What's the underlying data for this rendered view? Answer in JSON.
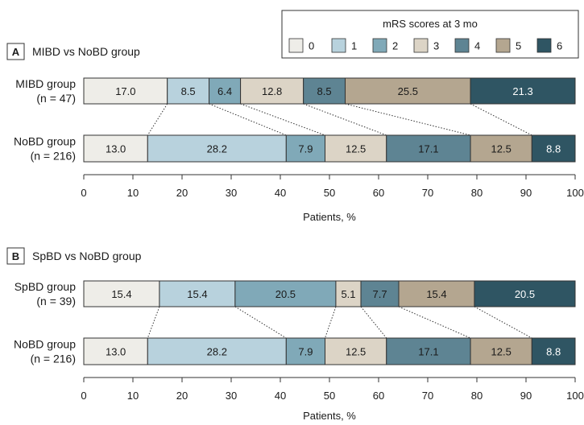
{
  "legend": {
    "title": "mRS scores at 3 mo",
    "items": [
      {
        "label": "0",
        "color": "#eeede8"
      },
      {
        "label": "1",
        "color": "#b8d2dd"
      },
      {
        "label": "2",
        "color": "#80a9b8"
      },
      {
        "label": "3",
        "color": "#dcd4c6"
      },
      {
        "label": "4",
        "color": "#5e8493"
      },
      {
        "label": "5",
        "color": "#b4a690"
      },
      {
        "label": "6",
        "color": "#2f5563"
      }
    ]
  },
  "chart_data": [
    {
      "type": "bar",
      "stacked": true,
      "orientation": "horizontal",
      "panel_letter": "A",
      "panel_title": "MIBD vs NoBD group",
      "xlabel": "Patients, %",
      "xlim": [
        0,
        100
      ],
      "xticks": [
        "0",
        "10",
        "20",
        "30",
        "40",
        "50",
        "60",
        "70",
        "80",
        "90",
        "100"
      ],
      "categories": [
        {
          "line1": "MIBD group",
          "line2": "(n = 47)"
        },
        {
          "line1": "NoBD group",
          "line2": "(n = 216)"
        }
      ],
      "series": [
        {
          "name": "0",
          "values": [
            17.0,
            13.0
          ],
          "labels": [
            "17.0",
            "13.0"
          ]
        },
        {
          "name": "1",
          "values": [
            8.5,
            28.2
          ],
          "labels": [
            "8.5",
            "28.2"
          ]
        },
        {
          "name": "2",
          "values": [
            6.4,
            7.9
          ],
          "labels": [
            "6.4",
            "7.9"
          ]
        },
        {
          "name": "3",
          "values": [
            12.8,
            12.5
          ],
          "labels": [
            "12.8",
            "12.5"
          ]
        },
        {
          "name": "4",
          "values": [
            8.5,
            17.1
          ],
          "labels": [
            "8.5",
            "17.1"
          ]
        },
        {
          "name": "5",
          "values": [
            25.5,
            12.5
          ],
          "labels": [
            "25.5",
            "12.5"
          ]
        },
        {
          "name": "6",
          "values": [
            21.3,
            8.8
          ],
          "labels": [
            "21.3",
            "8.8"
          ]
        }
      ]
    },
    {
      "type": "bar",
      "stacked": true,
      "orientation": "horizontal",
      "panel_letter": "B",
      "panel_title": "SpBD vs NoBD group",
      "xlabel": "Patients, %",
      "xlim": [
        0,
        100
      ],
      "xticks": [
        "0",
        "10",
        "20",
        "30",
        "40",
        "50",
        "60",
        "70",
        "80",
        "90",
        "100"
      ],
      "categories": [
        {
          "line1": "SpBD group",
          "line2": "(n = 39)"
        },
        {
          "line1": "NoBD group",
          "line2": "(n = 216)"
        }
      ],
      "series": [
        {
          "name": "0",
          "values": [
            15.4,
            13.0
          ],
          "labels": [
            "15.4",
            "13.0"
          ]
        },
        {
          "name": "1",
          "values": [
            15.4,
            28.2
          ],
          "labels": [
            "15.4",
            "28.2"
          ]
        },
        {
          "name": "2",
          "values": [
            20.5,
            7.9
          ],
          "labels": [
            "20.5",
            "7.9"
          ]
        },
        {
          "name": "3",
          "values": [
            5.1,
            12.5
          ],
          "labels": [
            "5.1",
            "12.5"
          ]
        },
        {
          "name": "4",
          "values": [
            7.7,
            17.1
          ],
          "labels": [
            "7.7",
            "17.1"
          ]
        },
        {
          "name": "5",
          "values": [
            15.4,
            12.5
          ],
          "labels": [
            "15.4",
            "12.5"
          ]
        },
        {
          "name": "6",
          "values": [
            20.5,
            8.8
          ],
          "labels": [
            "20.5",
            "8.8"
          ]
        }
      ]
    }
  ]
}
